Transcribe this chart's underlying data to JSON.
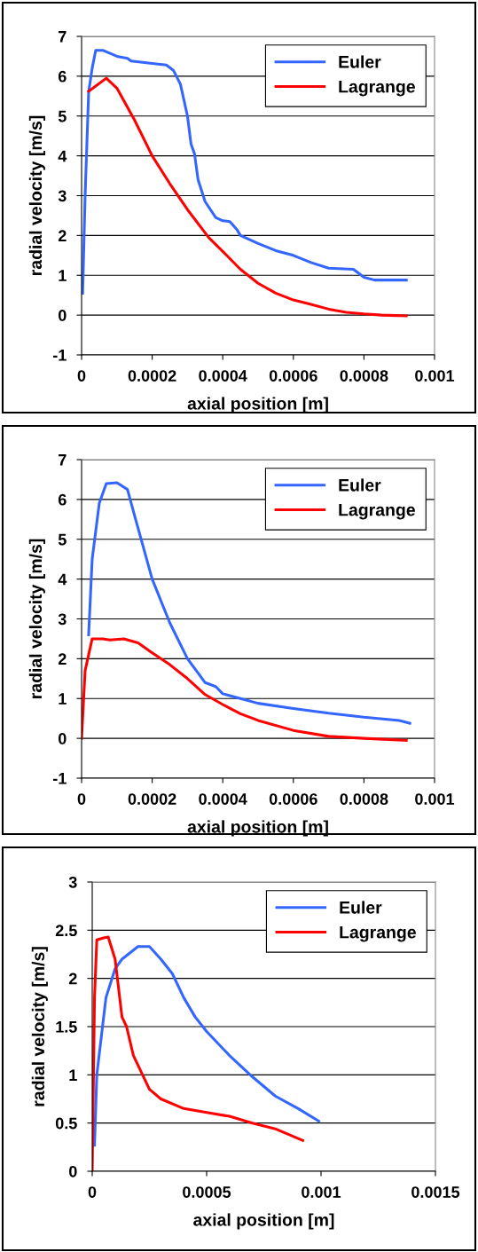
{
  "chart_data": [
    {
      "type": "line",
      "xlabel": "axial position [m]",
      "ylabel": "radial velocity [m/s]",
      "xlim": [
        0,
        0.001
      ],
      "ylim": [
        -1,
        7
      ],
      "xticks": [
        0,
        0.0002,
        0.0004,
        0.0006,
        0.0008,
        0.001
      ],
      "yticks": [
        -1,
        0,
        1,
        2,
        3,
        4,
        5,
        6,
        7
      ],
      "grid": "y",
      "legend": "top right",
      "marker": "none",
      "line_style": "solid",
      "series": [
        {
          "name": "Euler",
          "color": "#3366ff",
          "x": [
            3e-06,
            1e-05,
            2e-05,
            3e-05,
            4e-05,
            6e-05,
            0.0001,
            0.00013,
            0.00014,
            0.0002,
            0.00024,
            0.00026,
            0.00028,
            0.0003,
            0.00031,
            0.00032,
            0.00033,
            0.00035,
            0.00038,
            0.0004,
            0.00042,
            0.00044,
            0.00045,
            0.0005,
            0.00055,
            0.0006,
            0.00065,
            0.0007,
            0.00077,
            0.0008,
            0.00083,
            0.00092
          ],
          "values": [
            0.55,
            3,
            5.6,
            6.2,
            6.65,
            6.65,
            6.5,
            6.45,
            6.38,
            6.32,
            6.28,
            6.15,
            5.8,
            5.0,
            4.3,
            4.05,
            3.4,
            2.85,
            2.45,
            2.37,
            2.35,
            2.15,
            2.0,
            1.8,
            1.62,
            1.5,
            1.32,
            1.18,
            1.15,
            0.95,
            0.88,
            0.88
          ]
        },
        {
          "name": "Lagrange",
          "color": "#ff0000",
          "x": [
            2e-05,
            4e-05,
            7e-05,
            0.0001,
            0.00015,
            0.0002,
            0.00025,
            0.0003,
            0.00036,
            0.0004,
            0.00045,
            0.0005,
            0.00055,
            0.0006,
            0.00065,
            0.0007,
            0.00075,
            0.0008,
            0.00085,
            0.00092
          ],
          "values": [
            5.62,
            5.75,
            5.95,
            5.7,
            4.9,
            4.0,
            3.3,
            2.65,
            1.95,
            1.6,
            1.15,
            0.8,
            0.55,
            0.38,
            0.27,
            0.15,
            0.07,
            0.03,
            0.0,
            -0.02
          ]
        }
      ]
    },
    {
      "type": "line",
      "xlabel": "axial position [m]",
      "ylabel": "radial velocity [m/s]",
      "xlim": [
        0,
        0.001
      ],
      "ylim": [
        -1,
        7
      ],
      "xticks": [
        0,
        0.0002,
        0.0004,
        0.0006,
        0.0008,
        0.001
      ],
      "yticks": [
        -1,
        0,
        1,
        2,
        3,
        4,
        5,
        6,
        7
      ],
      "grid": "y",
      "legend": "top right",
      "marker": "none",
      "line_style": "solid",
      "series": [
        {
          "name": "Euler",
          "color": "#3366ff",
          "x": [
            2e-05,
            3e-05,
            5e-05,
            7e-05,
            0.0001,
            0.00013,
            0.00015,
            0.0002,
            0.00025,
            0.0003,
            0.00035,
            0.00038,
            0.0004,
            0.00045,
            0.0005,
            0.0006,
            0.0007,
            0.0008,
            0.0009,
            0.00093
          ],
          "values": [
            2.6,
            4.5,
            5.9,
            6.4,
            6.42,
            6.25,
            5.6,
            4.0,
            2.9,
            2.0,
            1.4,
            1.3,
            1.12,
            1.0,
            0.88,
            0.75,
            0.63,
            0.53,
            0.45,
            0.38
          ]
        },
        {
          "name": "Lagrange",
          "color": "#ff0000",
          "x": [
            0,
            1e-05,
            3e-05,
            6e-05,
            8e-05,
            0.00012,
            0.00016,
            0.0002,
            0.00025,
            0.0003,
            0.00035,
            0.0004,
            0.00045,
            0.0005,
            0.0006,
            0.0007,
            0.0008,
            0.00092
          ],
          "values": [
            0,
            1.7,
            2.5,
            2.5,
            2.47,
            2.5,
            2.4,
            2.15,
            1.85,
            1.5,
            1.1,
            0.85,
            0.62,
            0.45,
            0.2,
            0.05,
            0.0,
            -0.05
          ]
        }
      ]
    },
    {
      "type": "line",
      "xlabel": "axial position [m]",
      "ylabel": "radial velocity [m/s]",
      "xlim": [
        0,
        0.0015
      ],
      "ylim": [
        0,
        3
      ],
      "xticks": [
        0,
        0.0005,
        0.001,
        0.0015
      ],
      "yticks": [
        0,
        0.5,
        1,
        1.5,
        2,
        2.5,
        3
      ],
      "grid": "y",
      "legend": "top right",
      "marker": "none",
      "line_style": "solid",
      "series": [
        {
          "name": "Euler",
          "color": "#3366ff",
          "x": [
            1e-05,
            2e-05,
            6e-05,
            0.0001,
            0.00013,
            0.0002,
            0.00025,
            0.0003,
            0.00035,
            0.0004,
            0.00045,
            0.0005,
            0.0006,
            0.0007,
            0.0008,
            0.0009,
            0.00099
          ],
          "values": [
            0.27,
            1.0,
            1.8,
            2.1,
            2.2,
            2.33,
            2.33,
            2.2,
            2.05,
            1.8,
            1.6,
            1.45,
            1.2,
            0.98,
            0.78,
            0.65,
            0.52
          ]
        },
        {
          "name": "Lagrange",
          "color": "#ff0000",
          "x": [
            0,
            1e-05,
            2e-05,
            5e-05,
            7e-05,
            0.0001,
            0.00013,
            0.00015,
            0.00018,
            0.00025,
            0.0003,
            0.0004,
            0.0005,
            0.0006,
            0.0007,
            0.0008,
            0.00092
          ],
          "values": [
            0,
            1.8,
            2.4,
            2.42,
            2.43,
            2.2,
            1.6,
            1.5,
            1.2,
            0.85,
            0.75,
            0.65,
            0.61,
            0.57,
            0.5,
            0.44,
            0.32
          ]
        }
      ]
    }
  ]
}
